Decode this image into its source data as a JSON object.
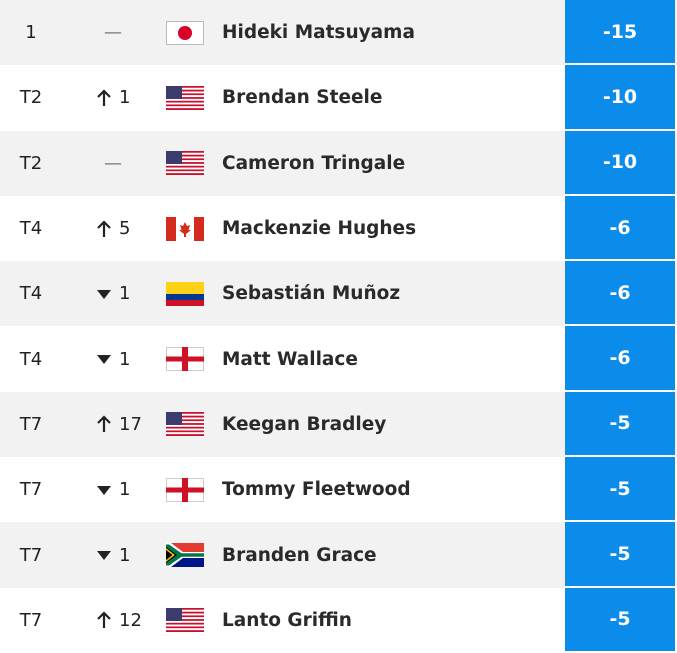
{
  "table": {
    "rows": [
      {
        "position": "1",
        "trend": "none",
        "change": "—",
        "flag": "jp",
        "name": "Hideki Matsuyama",
        "score": "-15"
      },
      {
        "position": "T2",
        "trend": "up",
        "change": "1",
        "flag": "us",
        "name": "Brendan Steele",
        "score": "-10"
      },
      {
        "position": "T2",
        "trend": "none",
        "change": "—",
        "flag": "us",
        "name": "Cameron Tringale",
        "score": "-10"
      },
      {
        "position": "T4",
        "trend": "up",
        "change": "5",
        "flag": "ca",
        "name": "Mackenzie Hughes",
        "score": "-6"
      },
      {
        "position": "T4",
        "trend": "down",
        "change": "1",
        "flag": "co",
        "name": "Sebastián Muñoz",
        "score": "-6"
      },
      {
        "position": "T4",
        "trend": "down",
        "change": "1",
        "flag": "en",
        "name": "Matt Wallace",
        "score": "-6"
      },
      {
        "position": "T7",
        "trend": "up",
        "change": "17",
        "flag": "us",
        "name": "Keegan Bradley",
        "score": "-5"
      },
      {
        "position": "T7",
        "trend": "down",
        "change": "1",
        "flag": "en",
        "name": "Tommy Fleetwood",
        "score": "-5"
      },
      {
        "position": "T7",
        "trend": "down",
        "change": "1",
        "flag": "za",
        "name": "Branden Grace",
        "score": "-5"
      },
      {
        "position": "T7",
        "trend": "up",
        "change": "12",
        "flag": "us",
        "name": "Lanto Griffin",
        "score": "-5"
      }
    ]
  }
}
